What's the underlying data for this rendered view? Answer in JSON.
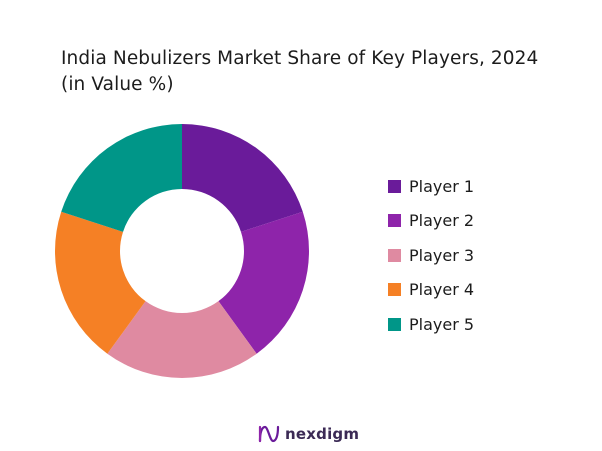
{
  "header": {
    "title_line1": "India Nebulizers Market Share of Key Players, 2024",
    "title_line2": "(in Value %)"
  },
  "chart_data": {
    "type": "pie",
    "style": "donut",
    "title": "India Nebulizers Market Share of Key Players, 2024 (in Value %)",
    "categories": [
      "Player 1",
      "Player 2",
      "Player 3",
      "Player 4",
      "Player 5"
    ],
    "values": [
      20,
      20,
      20,
      20,
      20
    ],
    "colors": [
      "#6a1b9a",
      "#8e24aa",
      "#df8aa1",
      "#f58025",
      "#009688"
    ],
    "legend_position": "right"
  },
  "legend": {
    "items": [
      {
        "label": "Player 1",
        "color": "#6a1b9a"
      },
      {
        "label": "Player 2",
        "color": "#8e24aa"
      },
      {
        "label": "Player 3",
        "color": "#df8aa1"
      },
      {
        "label": "Player 4",
        "color": "#f58025"
      },
      {
        "label": "Player 5",
        "color": "#009688"
      }
    ]
  },
  "footer": {
    "logo_icon": "nexdigm-logo-icon",
    "logo_text": "nexdigm",
    "logo_color": "#6a1b9a"
  }
}
